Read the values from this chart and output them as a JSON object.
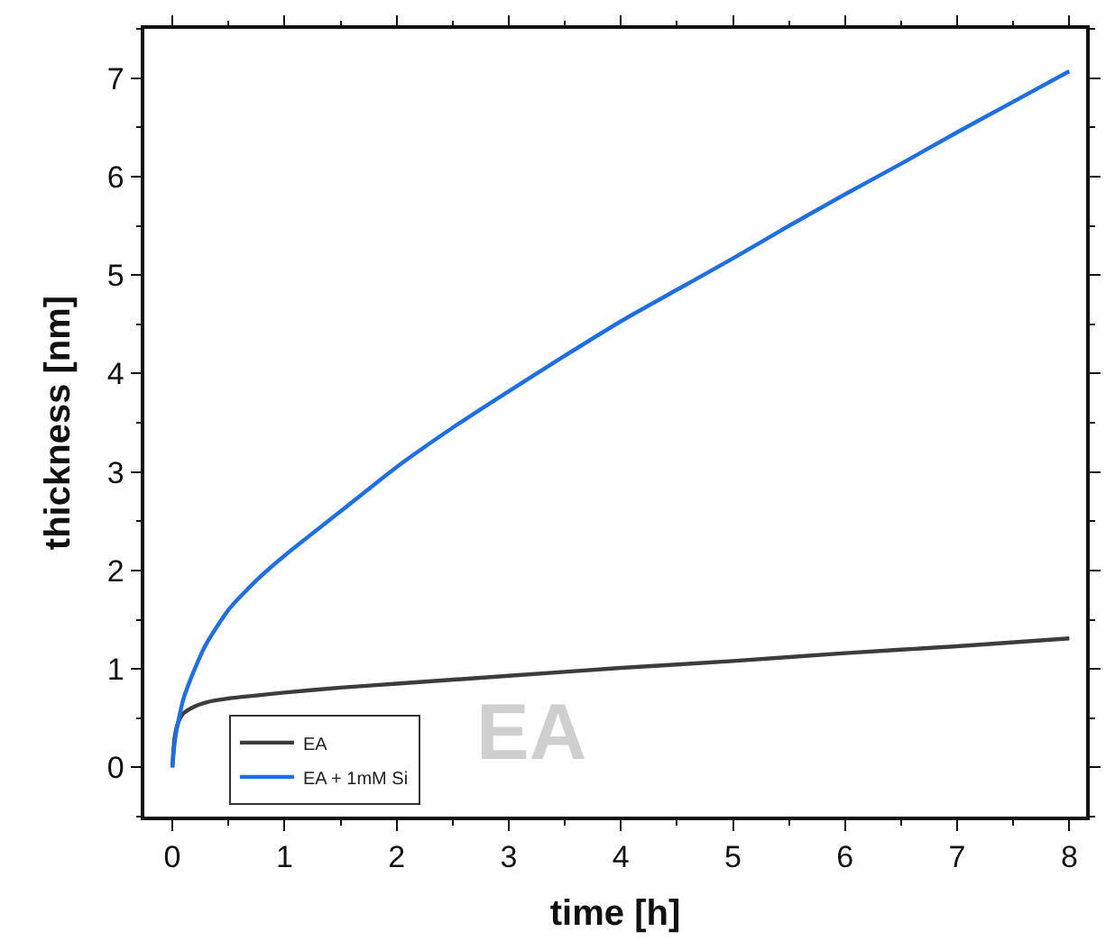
{
  "chart_data": {
    "type": "line",
    "xlabel": "time [h]",
    "ylabel": "thickness [nm]",
    "xlim": [
      -0.25,
      8.15
    ],
    "ylim": [
      -0.5,
      7.5
    ],
    "xticks": [
      0,
      1,
      2,
      3,
      4,
      5,
      6,
      7,
      8
    ],
    "yticks": [
      0,
      1,
      2,
      3,
      4,
      5,
      6,
      7
    ],
    "legend": "bottom left",
    "line_style": "solid",
    "marker": "none",
    "annotations": [
      "EA"
    ],
    "series": [
      {
        "name": "EA",
        "color": "#3c3c3c",
        "x": [
          0,
          0.02,
          0.05,
          0.1,
          0.2,
          0.3,
          0.5,
          0.75,
          1,
          1.5,
          2,
          3,
          4,
          5,
          6,
          7,
          8
        ],
        "values": [
          0,
          0.3,
          0.45,
          0.55,
          0.62,
          0.66,
          0.7,
          0.73,
          0.76,
          0.81,
          0.85,
          0.93,
          1.01,
          1.08,
          1.16,
          1.23,
          1.31
        ]
      },
      {
        "name": "EA + 1mM Si",
        "color": "#1f6fe0",
        "x": [
          0,
          0.02,
          0.05,
          0.1,
          0.2,
          0.3,
          0.5,
          0.75,
          1,
          1.5,
          2,
          2.5,
          3,
          3.5,
          4,
          4.5,
          5,
          5.5,
          6,
          6.5,
          7,
          7.5,
          8
        ],
        "values": [
          0,
          0.25,
          0.45,
          0.7,
          1.0,
          1.25,
          1.6,
          1.9,
          2.15,
          2.6,
          3.05,
          3.45,
          3.82,
          4.18,
          4.53,
          4.85,
          5.17,
          5.5,
          5.82,
          6.13,
          6.45,
          6.76,
          7.07
        ]
      }
    ]
  }
}
